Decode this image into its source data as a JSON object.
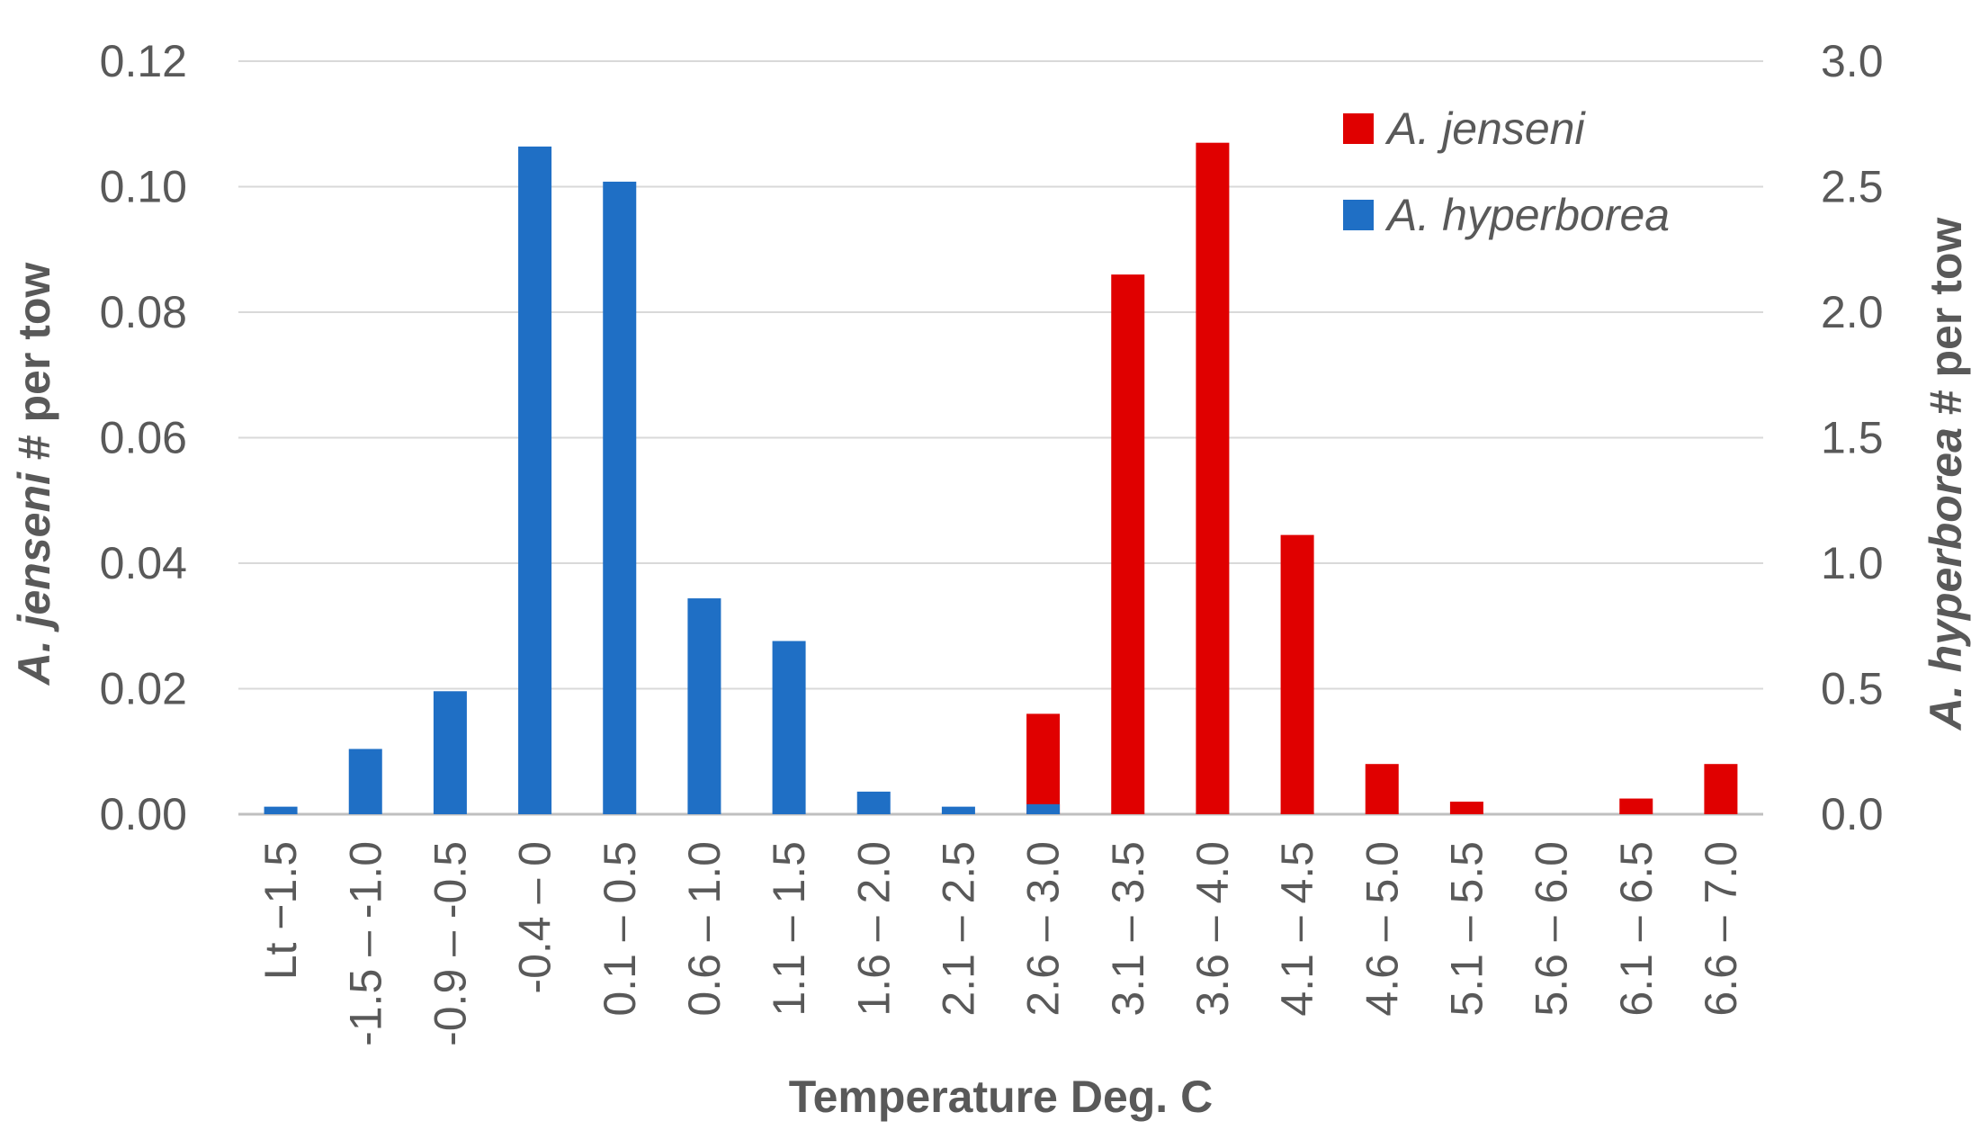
{
  "chart_data": {
    "type": "bar",
    "categories": [
      "Lt −1.5",
      "-1.5 – -1.0",
      "-0.9 – -0.5",
      "-0.4 – 0",
      "0.1 – 0.5",
      "0.6 – 1.0",
      "1.1 – 1.5",
      "1.6 – 2.0",
      "2.1 – 2.5",
      "2.6 – 3.0",
      "3.1 – 3.5",
      "3.6 – 4.0",
      "4.1 – 4.5",
      "4.6 – 5.0",
      "5.1 – 5.5",
      "5.6 – 6.0",
      "6.1 – 6.5",
      "6.6 – 7.0"
    ],
    "series": [
      {
        "name": "A. jenseni",
        "axis": "left",
        "color": "#e00000",
        "values": [
          0,
          0,
          0,
          0,
          0,
          0,
          0,
          0,
          0,
          0.016,
          0.086,
          0.107,
          0.0445,
          0.008,
          0.002,
          0,
          0.0025,
          0.008
        ]
      },
      {
        "name": "A. hyperborea",
        "axis": "right",
        "color": "#1f6fc5",
        "values": [
          0.03,
          0.26,
          0.49,
          2.66,
          2.52,
          0.86,
          0.69,
          0.09,
          0.03,
          0.04,
          0,
          0,
          0,
          0,
          0,
          0,
          0,
          0
        ]
      }
    ],
    "title": "",
    "xlabel": "Temperature Deg. C",
    "ylabel": "A. jenseni # per tow",
    "ylabel_italic_part": "A. jenseni",
    "ylabel_rest": " # per tow",
    "y2label_italic_part": "A. hyperborea",
    "y2label_rest": " # per tow",
    "ylim": [
      0,
      0.12
    ],
    "y2lim": [
      0,
      3.0
    ],
    "yticks": [
      "0.00",
      "0.02",
      "0.04",
      "0.06",
      "0.08",
      "0.10",
      "0.12"
    ],
    "y2ticks": [
      "0.0",
      "0.5",
      "1.0",
      "1.5",
      "2.0",
      "2.5",
      "3.0"
    ],
    "grid": true,
    "legend_position": "top-right"
  }
}
